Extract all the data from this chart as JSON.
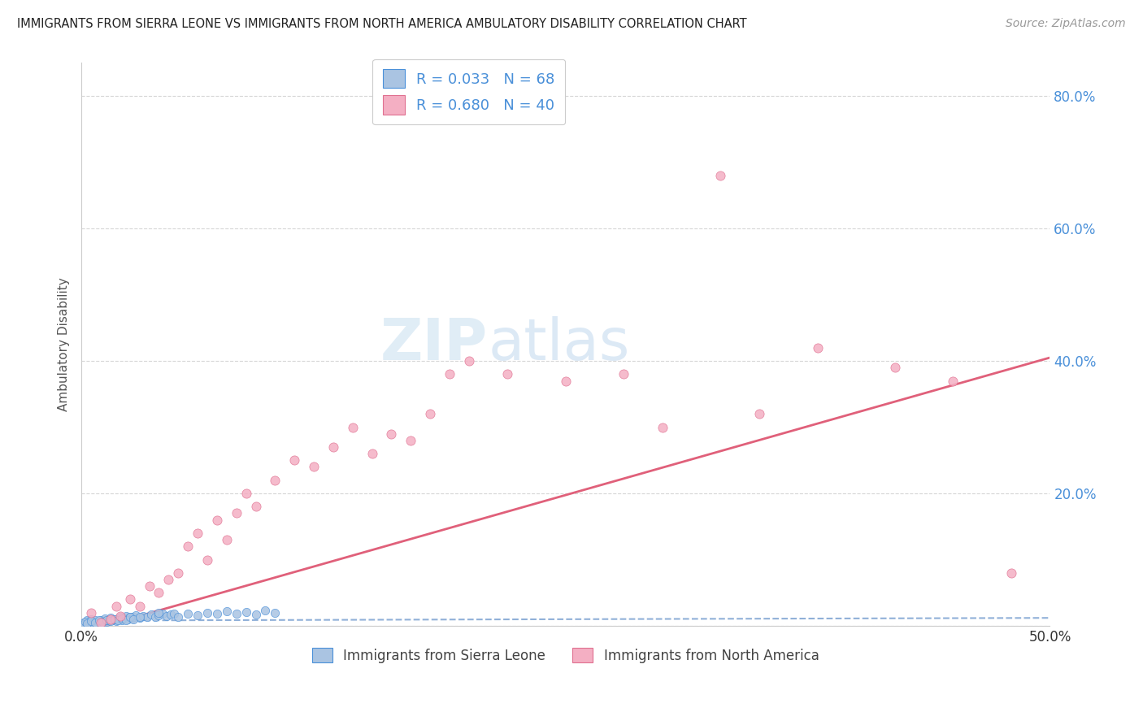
{
  "title": "IMMIGRANTS FROM SIERRA LEONE VS IMMIGRANTS FROM NORTH AMERICA AMBULATORY DISABILITY CORRELATION CHART",
  "source": "Source: ZipAtlas.com",
  "ylabel": "Ambulatory Disability",
  "legend_label_1": "Immigrants from Sierra Leone",
  "legend_label_2": "Immigrants from North America",
  "R1": 0.033,
  "N1": 68,
  "R2": 0.68,
  "N2": 40,
  "color_blue": "#aac4e2",
  "color_pink": "#f4afc3",
  "color_blue_dark": "#4a90d9",
  "color_pink_dark": "#e07090",
  "line_blue": "#90b0d8",
  "line_pink": "#e0607a",
  "bg_color": "#ffffff",
  "xlim": [
    0.0,
    0.5
  ],
  "ylim": [
    0.0,
    0.85
  ],
  "yticks": [
    0.0,
    0.2,
    0.4,
    0.6,
    0.8
  ],
  "ytick_labels": [
    "",
    "20.0%",
    "40.0%",
    "60.0%",
    "80.0%"
  ],
  "na_x": [
    0.005,
    0.01,
    0.015,
    0.018,
    0.02,
    0.025,
    0.03,
    0.035,
    0.04,
    0.045,
    0.05,
    0.055,
    0.06,
    0.065,
    0.07,
    0.075,
    0.08,
    0.085,
    0.09,
    0.1,
    0.11,
    0.12,
    0.13,
    0.14,
    0.15,
    0.16,
    0.17,
    0.18,
    0.19,
    0.2,
    0.22,
    0.25,
    0.28,
    0.3,
    0.33,
    0.35,
    0.38,
    0.42,
    0.45,
    0.48
  ],
  "na_y": [
    0.02,
    0.005,
    0.01,
    0.03,
    0.015,
    0.04,
    0.03,
    0.06,
    0.05,
    0.07,
    0.08,
    0.12,
    0.14,
    0.1,
    0.16,
    0.13,
    0.17,
    0.2,
    0.18,
    0.22,
    0.25,
    0.24,
    0.27,
    0.3,
    0.26,
    0.29,
    0.28,
    0.32,
    0.38,
    0.4,
    0.38,
    0.37,
    0.38,
    0.3,
    0.68,
    0.32,
    0.42,
    0.39,
    0.37,
    0.08
  ],
  "sl_x": [
    0.0,
    0.001,
    0.002,
    0.003,
    0.004,
    0.005,
    0.006,
    0.007,
    0.008,
    0.009,
    0.01,
    0.011,
    0.012,
    0.013,
    0.014,
    0.015,
    0.016,
    0.017,
    0.018,
    0.019,
    0.02,
    0.021,
    0.022,
    0.023,
    0.024,
    0.025,
    0.026,
    0.027,
    0.028,
    0.03,
    0.032,
    0.034,
    0.036,
    0.038,
    0.04,
    0.042,
    0.044,
    0.046,
    0.048,
    0.05,
    0.055,
    0.06,
    0.065,
    0.07,
    0.075,
    0.08,
    0.085,
    0.09,
    0.095,
    0.1,
    0.0,
    0.001,
    0.002,
    0.003,
    0.005,
    0.007,
    0.009,
    0.011,
    0.013,
    0.015,
    0.017,
    0.019,
    0.021,
    0.023,
    0.025,
    0.027,
    0.03,
    0.04
  ],
  "sl_y": [
    0.0,
    0.005,
    0.002,
    0.008,
    0.003,
    0.01,
    0.005,
    0.008,
    0.004,
    0.006,
    0.009,
    0.007,
    0.011,
    0.006,
    0.009,
    0.012,
    0.008,
    0.01,
    0.007,
    0.011,
    0.013,
    0.009,
    0.012,
    0.015,
    0.01,
    0.014,
    0.011,
    0.013,
    0.016,
    0.012,
    0.015,
    0.013,
    0.017,
    0.014,
    0.016,
    0.018,
    0.015,
    0.017,
    0.019,
    0.014,
    0.018,
    0.016,
    0.02,
    0.018,
    0.022,
    0.019,
    0.021,
    0.017,
    0.023,
    0.02,
    0.001,
    0.003,
    0.006,
    0.004,
    0.007,
    0.005,
    0.008,
    0.006,
    0.009,
    0.007,
    0.01,
    0.008,
    0.011,
    0.009,
    0.013,
    0.01,
    0.014,
    0.02
  ],
  "na_line_x0": 0.0,
  "na_line_x1": 0.5,
  "na_line_y0": -0.01,
  "na_line_y1": 0.405,
  "sl_line_x0": 0.0,
  "sl_line_x1": 0.5,
  "sl_line_y0": 0.008,
  "sl_line_y1": 0.012
}
